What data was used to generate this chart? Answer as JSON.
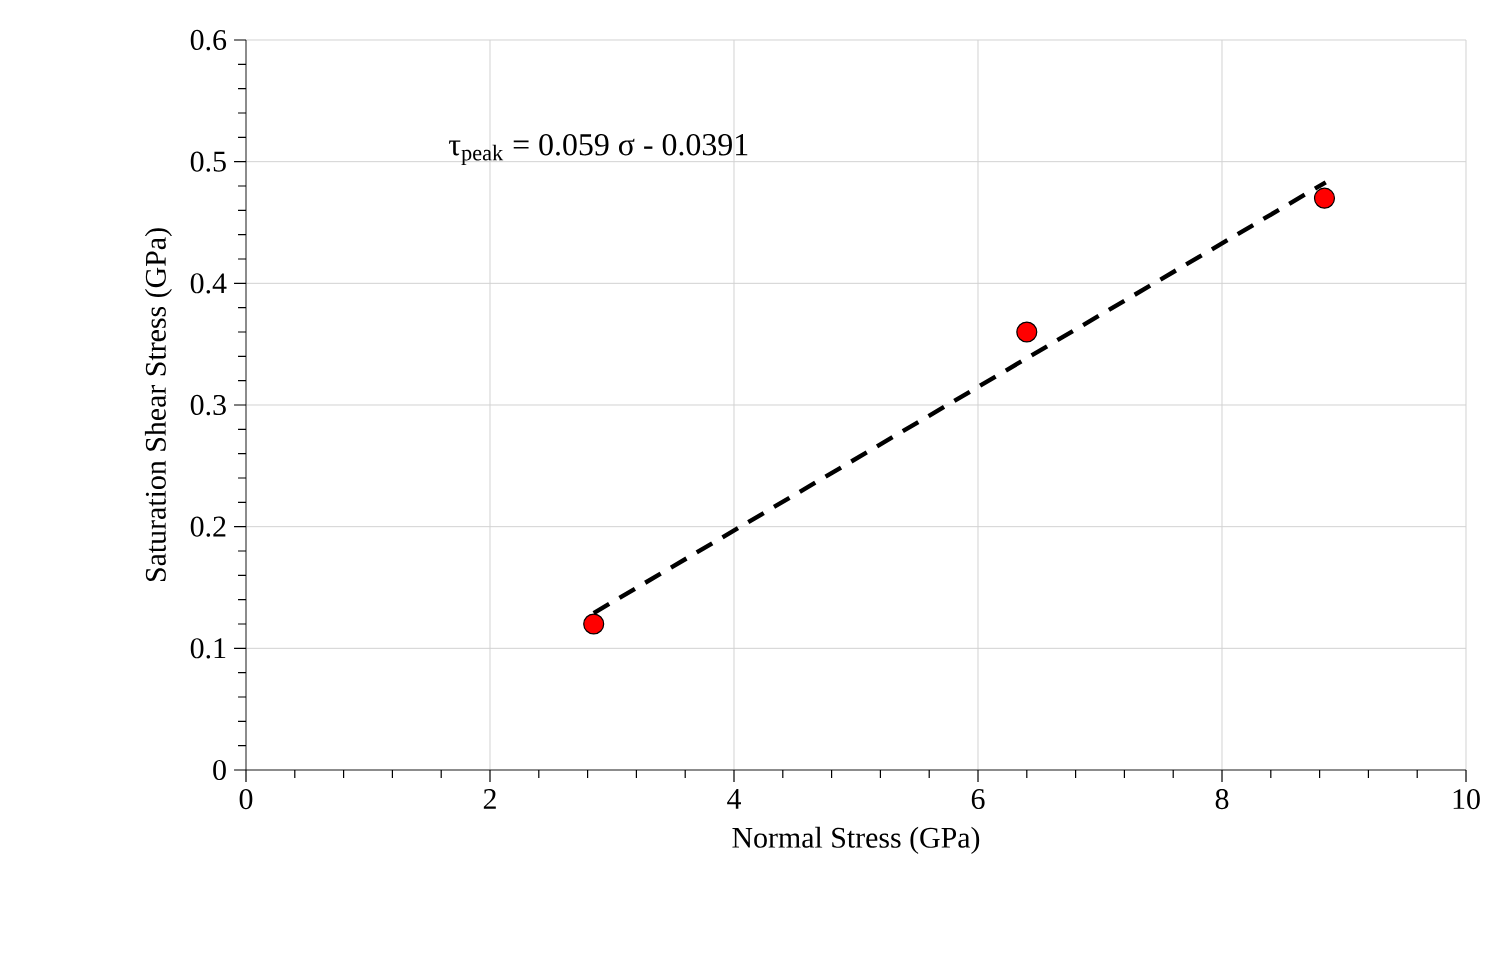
{
  "chart_data": {
    "type": "scatter",
    "xlabel": "Normal Stress (GPa)",
    "ylabel": "Saturation Shear Stress (GPa)",
    "annotations": [
      "τ$_{peak}$ = 0.059 σ - 0.0391"
    ],
    "xlim": [
      0,
      10
    ],
    "ylim": [
      0,
      0.6
    ],
    "xticks": [
      0,
      2,
      4,
      6,
      8,
      10
    ],
    "yticks": [
      0,
      0.1,
      0.2,
      0.3,
      0.4,
      0.5,
      0.6
    ],
    "grid": true,
    "series": [
      {
        "color": "#ff0000",
        "marker": "circle",
        "x": [
          2.85,
          6.4,
          8.84
        ],
        "values": [
          0.12,
          0.36,
          0.47
        ]
      },
      {
        "type": "line",
        "color": "#000000",
        "line_style": "dashed",
        "marker": "none",
        "x": [
          2.85,
          8.85
        ],
        "values": [
          0.129,
          0.483
        ]
      }
    ]
  }
}
